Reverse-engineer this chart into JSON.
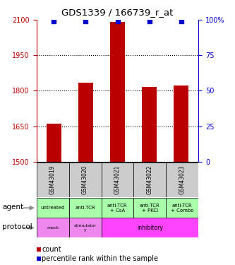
{
  "title": "GDS1339 / 166739_r_at",
  "samples": [
    "GSM43019",
    "GSM43020",
    "GSM43021",
    "GSM43022",
    "GSM43023"
  ],
  "counts": [
    1660,
    1835,
    2090,
    1815,
    1822
  ],
  "percentiles": [
    99,
    99,
    99,
    99,
    99
  ],
  "ylim_left": [
    1500,
    2100
  ],
  "ylim_right": [
    0,
    100
  ],
  "yticks_left": [
    1500,
    1650,
    1800,
    1950,
    2100
  ],
  "yticks_right": [
    0,
    25,
    50,
    75,
    100
  ],
  "bar_color": "#bb0000",
  "dot_color": "#0000cc",
  "agent_labels": [
    "untreated",
    "anti-TCR",
    "anti-TCR\n+ CsA",
    "anti-TCR\n+ PKCi",
    "anti-TCR\n+ Combo"
  ],
  "agent_bg": "#aaffaa",
  "protocol_bg_mock": "#ee88ee",
  "protocol_bg_stimulatory": "#ee88ee",
  "protocol_bg_inhibitory": "#ff44ff",
  "sample_bg": "#cccccc",
  "legend_count_color": "#bb0000",
  "legend_pct_color": "#0000cc",
  "fig_width": 3.33,
  "fig_height": 3.75,
  "dpi": 100
}
